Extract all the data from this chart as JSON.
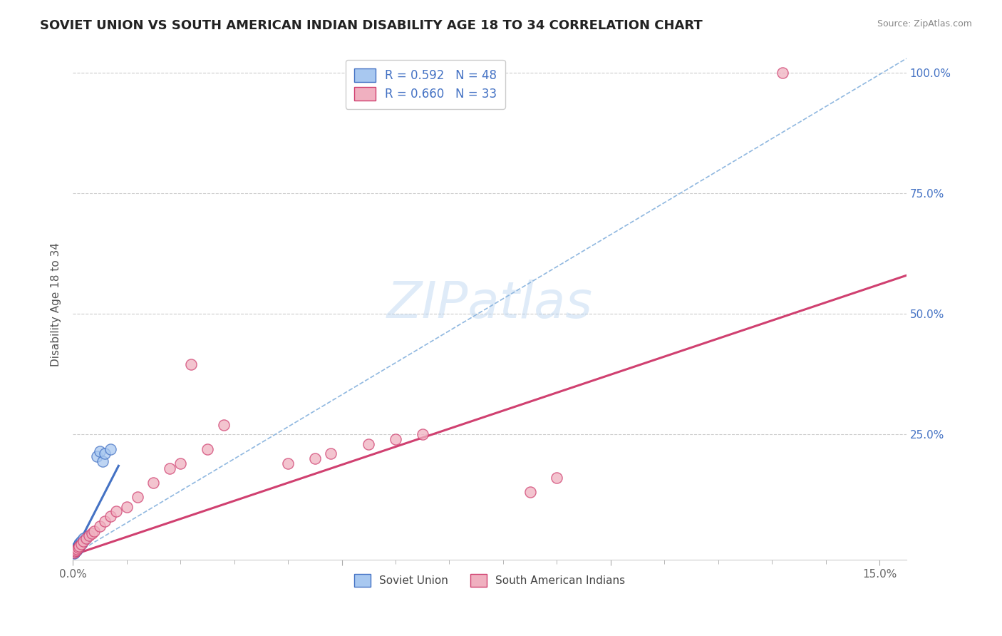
{
  "title": "SOVIET UNION VS SOUTH AMERICAN INDIAN DISABILITY AGE 18 TO 34 CORRELATION CHART",
  "source": "Source: ZipAtlas.com",
  "ylabel": "Disability Age 18 to 34",
  "xlim": [
    0.0,
    0.155
  ],
  "ylim": [
    -0.01,
    1.05
  ],
  "watermark": "ZIPatlas",
  "soviet_color": "#a8c8f0",
  "south_american_color": "#f0b0c0",
  "soviet_edge_color": "#4472c4",
  "south_american_edge_color": "#d04070",
  "soviet_line_color": "#4472c4",
  "south_american_line_color": "#d04070",
  "dashed_line_color": "#90b8e0",
  "background_color": "#ffffff",
  "grid_color": "#cccccc",
  "title_color": "#222222",
  "axis_label_color": "#555555",
  "tick_color_y": "#4472c4",
  "tick_color_x": "#666666",
  "source_color": "#888888",
  "legend_label_color": "#4472c4",
  "bottom_legend_label_color": "#444444",
  "soviet_scatter_x": [
    0.0002,
    0.0003,
    0.0004,
    0.0005,
    0.0006,
    0.0007,
    0.0008,
    0.0009,
    0.001,
    0.0012,
    0.0013,
    0.0015,
    0.0016,
    0.0018,
    0.002,
    0.0022,
    0.0025,
    0.0003,
    0.0005,
    0.0006,
    0.0007,
    0.0008,
    0.001,
    0.0012,
    0.0015,
    0.0004,
    0.0006,
    0.0008,
    0.001,
    0.0013,
    0.0002,
    0.0003,
    0.0005,
    0.0007,
    0.001,
    0.0012,
    0.0015,
    0.002,
    0.0002,
    0.0004,
    0.0006,
    0.0009,
    0.0011,
    0.0045,
    0.005,
    0.0055,
    0.006,
    0.007
  ],
  "soviet_scatter_y": [
    0.005,
    0.006,
    0.007,
    0.008,
    0.009,
    0.01,
    0.012,
    0.013,
    0.015,
    0.018,
    0.02,
    0.022,
    0.025,
    0.028,
    0.03,
    0.033,
    0.038,
    0.008,
    0.01,
    0.012,
    0.014,
    0.016,
    0.02,
    0.024,
    0.028,
    0.006,
    0.01,
    0.013,
    0.017,
    0.022,
    0.004,
    0.007,
    0.011,
    0.015,
    0.019,
    0.023,
    0.028,
    0.035,
    0.005,
    0.008,
    0.012,
    0.016,
    0.02,
    0.205,
    0.215,
    0.195,
    0.21,
    0.22
  ],
  "south_scatter_x": [
    0.0002,
    0.0004,
    0.0006,
    0.0008,
    0.001,
    0.0012,
    0.0015,
    0.002,
    0.0025,
    0.003,
    0.0035,
    0.004,
    0.005,
    0.006,
    0.007,
    0.008,
    0.01,
    0.012,
    0.015,
    0.018,
    0.02,
    0.025,
    0.028,
    0.04,
    0.045,
    0.048,
    0.055,
    0.06,
    0.065,
    0.085,
    0.09,
    0.022,
    0.132
  ],
  "south_scatter_y": [
    0.005,
    0.008,
    0.01,
    0.012,
    0.015,
    0.018,
    0.022,
    0.028,
    0.035,
    0.04,
    0.045,
    0.05,
    0.06,
    0.07,
    0.08,
    0.09,
    0.1,
    0.12,
    0.15,
    0.18,
    0.19,
    0.22,
    0.27,
    0.19,
    0.2,
    0.21,
    0.23,
    0.24,
    0.25,
    0.13,
    0.16,
    0.395,
    1.0
  ],
  "soviet_tline_x": [
    0.0,
    0.0085
  ],
  "soviet_tline_y": [
    0.0,
    0.185
  ],
  "south_tline_x": [
    0.0,
    0.155
  ],
  "south_tline_y": [
    0.0,
    0.58
  ],
  "dash_tline_x": [
    0.0,
    0.155
  ],
  "dash_tline_y": [
    0.0,
    1.03
  ]
}
